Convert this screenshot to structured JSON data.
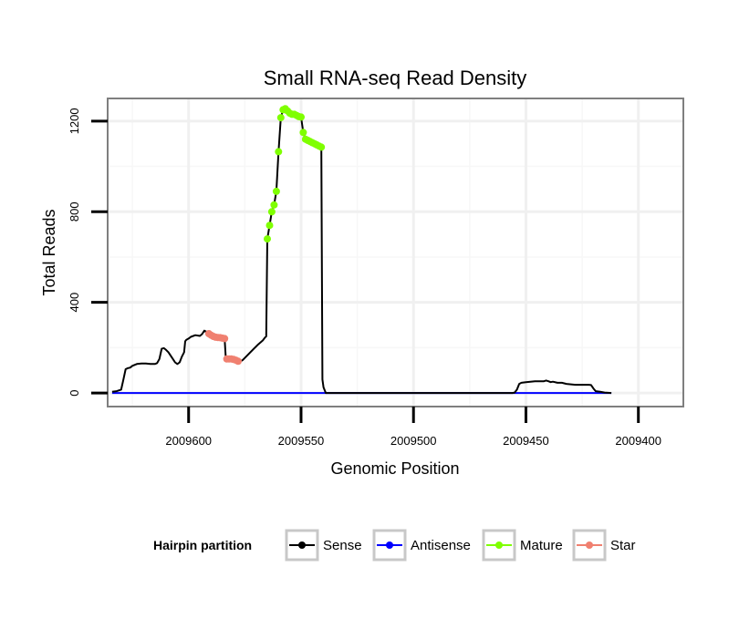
{
  "chart_data": {
    "type": "line",
    "title": "Small RNA-seq Read Density",
    "xlabel": "Genomic Position",
    "ylabel": "Total Reads",
    "x_reversed": true,
    "xlim": [
      2009636,
      2009380
    ],
    "ylim": [
      -60,
      1300
    ],
    "x_ticks": [
      2009600,
      2009550,
      2009500,
      2009450,
      2009400
    ],
    "x_tick_labels": [
      "2009600",
      "2009550",
      "2009500",
      "2009450",
      "2009400"
    ],
    "y_ticks": [
      0,
      400,
      800,
      1200
    ],
    "y_tick_labels": [
      "0",
      "400",
      "800",
      "1200"
    ],
    "grid": true,
    "legend": {
      "title": "Hairpin partition",
      "position": "bottom",
      "entries": [
        {
          "label": "Sense",
          "color": "#000000"
        },
        {
          "label": "Antisense",
          "color": "#0000ff"
        },
        {
          "label": "Mature",
          "color": "#7fff00"
        },
        {
          "label": "Star",
          "color": "#f08070"
        }
      ]
    },
    "series": [
      {
        "name": "Sense",
        "color": "#000000",
        "points": [
          [
            2009634,
            5
          ],
          [
            2009632,
            8
          ],
          [
            2009630,
            15
          ],
          [
            2009629,
            60
          ],
          [
            2009628,
            105
          ],
          [
            2009627,
            110
          ],
          [
            2009626,
            112
          ],
          [
            2009625,
            120
          ],
          [
            2009623,
            128
          ],
          [
            2009621,
            130
          ],
          [
            2009619,
            130
          ],
          [
            2009617,
            128
          ],
          [
            2009615,
            128
          ],
          [
            2009614,
            132
          ],
          [
            2009613,
            150
          ],
          [
            2009612,
            195
          ],
          [
            2009611,
            198
          ],
          [
            2009610,
            190
          ],
          [
            2009609,
            180
          ],
          [
            2009608,
            165
          ],
          [
            2009607,
            150
          ],
          [
            2009606,
            135
          ],
          [
            2009605,
            128
          ],
          [
            2009604,
            135
          ],
          [
            2009603,
            160
          ],
          [
            2009602,
            180
          ],
          [
            2009601.5,
            228
          ],
          [
            2009601,
            235
          ],
          [
            2009600,
            240
          ],
          [
            2009599,
            248
          ],
          [
            2009597,
            255
          ],
          [
            2009595,
            252
          ],
          [
            2009594,
            260
          ],
          [
            2009593,
            275
          ],
          [
            2009592,
            270
          ],
          [
            2009591,
            262
          ],
          [
            2009590,
            255
          ],
          [
            2009589,
            250
          ],
          [
            2009587,
            245
          ],
          [
            2009585,
            242
          ],
          [
            2009584,
            240
          ],
          [
            2009583.5,
            160
          ],
          [
            2009583,
            150
          ],
          [
            2009581,
            150
          ],
          [
            2009579,
            145
          ],
          [
            2009577,
            140
          ],
          [
            2009576,
            145
          ],
          [
            2009575,
            155
          ],
          [
            2009573,
            175
          ],
          [
            2009571,
            195
          ],
          [
            2009569,
            215
          ],
          [
            2009567,
            232
          ],
          [
            2009566,
            245
          ],
          [
            2009565.5,
            250
          ],
          [
            2009565,
            680
          ],
          [
            2009564,
            740
          ],
          [
            2009563,
            800
          ],
          [
            2009562,
            830
          ],
          [
            2009561,
            890
          ],
          [
            2009560,
            1065
          ],
          [
            2009559,
            1215
          ],
          [
            2009558,
            1250
          ],
          [
            2009557,
            1255
          ],
          [
            2009556,
            1245
          ],
          [
            2009555,
            1235
          ],
          [
            2009554,
            1230
          ],
          [
            2009553,
            1230
          ],
          [
            2009552,
            1225
          ],
          [
            2009551,
            1220
          ],
          [
            2009550,
            1218
          ],
          [
            2009549,
            1150
          ],
          [
            2009548,
            1120
          ],
          [
            2009547,
            1115
          ],
          [
            2009546,
            1110
          ],
          [
            2009545,
            1105
          ],
          [
            2009544,
            1100
          ],
          [
            2009543,
            1095
          ],
          [
            2009542,
            1090
          ],
          [
            2009541,
            1085
          ],
          [
            2009540.5,
            60
          ],
          [
            2009540,
            25
          ],
          [
            2009539,
            0
          ],
          [
            2009480,
            0
          ],
          [
            2009456,
            0
          ],
          [
            2009455,
            2
          ],
          [
            2009454,
            15
          ],
          [
            2009453,
            40
          ],
          [
            2009452,
            45
          ],
          [
            2009450,
            48
          ],
          [
            2009448,
            50
          ],
          [
            2009446,
            52
          ],
          [
            2009444,
            52
          ],
          [
            2009442,
            52
          ],
          [
            2009441,
            55
          ],
          [
            2009440,
            52
          ],
          [
            2009439,
            48
          ],
          [
            2009438,
            50
          ],
          [
            2009436,
            45
          ],
          [
            2009434,
            45
          ],
          [
            2009432,
            40
          ],
          [
            2009430,
            38
          ],
          [
            2009428,
            36
          ],
          [
            2009426,
            36
          ],
          [
            2009424,
            36
          ],
          [
            2009422,
            36
          ],
          [
            2009421,
            35
          ],
          [
            2009420,
            20
          ],
          [
            2009419,
            8
          ],
          [
            2009417,
            5
          ],
          [
            2009415,
            2
          ],
          [
            2009412,
            0
          ]
        ]
      },
      {
        "name": "Antisense",
        "color": "#0000ff",
        "points": [
          [
            2009634,
            0
          ],
          [
            2009412,
            0
          ]
        ]
      },
      {
        "name": "Mature",
        "color": "#7fff00",
        "points": [
          [
            2009565,
            680
          ],
          [
            2009564,
            740
          ],
          [
            2009563,
            800
          ],
          [
            2009562,
            830
          ],
          [
            2009561,
            890
          ],
          [
            2009560,
            1065
          ],
          [
            2009559,
            1215
          ],
          [
            2009558,
            1250
          ],
          [
            2009557,
            1255
          ],
          [
            2009556,
            1245
          ],
          [
            2009555,
            1235
          ],
          [
            2009554,
            1230
          ],
          [
            2009553,
            1230
          ],
          [
            2009552,
            1225
          ],
          [
            2009551,
            1220
          ],
          [
            2009550,
            1218
          ],
          [
            2009549,
            1150
          ],
          [
            2009548,
            1120
          ],
          [
            2009547,
            1115
          ],
          [
            2009546,
            1110
          ],
          [
            2009545,
            1105
          ],
          [
            2009544,
            1100
          ],
          [
            2009543,
            1095
          ],
          [
            2009542,
            1090
          ],
          [
            2009541,
            1085
          ]
        ]
      },
      {
        "name": "Star",
        "color": "#f08070",
        "points": [
          [
            2009591,
            262
          ],
          [
            2009590,
            255
          ],
          [
            2009589,
            250
          ],
          [
            2009588,
            246
          ],
          [
            2009587,
            245
          ],
          [
            2009586,
            244
          ],
          [
            2009585,
            242
          ],
          [
            2009584,
            240
          ],
          [
            2009583,
            150
          ],
          [
            2009582,
            150
          ],
          [
            2009581,
            150
          ],
          [
            2009580,
            148
          ],
          [
            2009579,
            145
          ],
          [
            2009578,
            140
          ]
        ]
      }
    ]
  }
}
